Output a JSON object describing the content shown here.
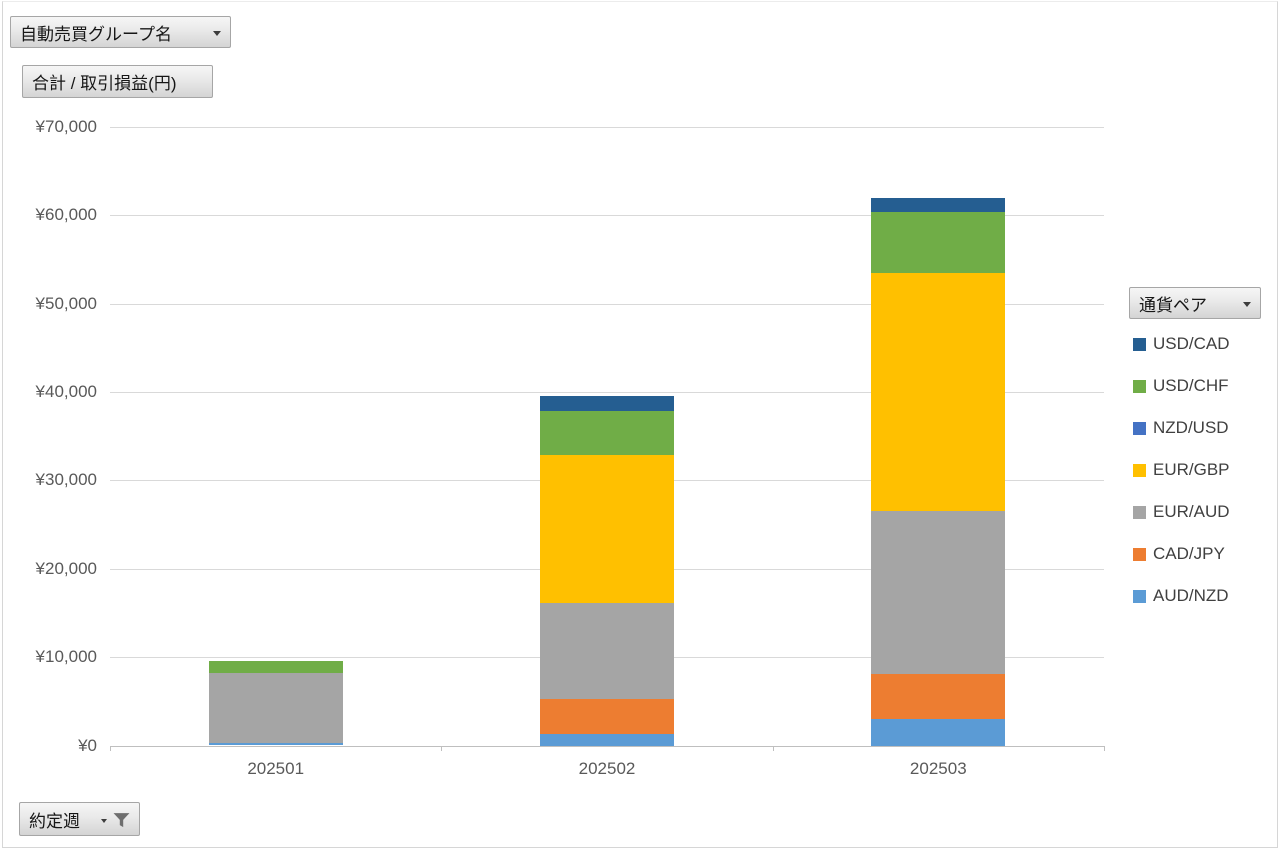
{
  "field_buttons": {
    "group_name_label": "自動売買グループ名",
    "value_label": "合計 / 取引損益(円)",
    "legend_label": "通貨ペア",
    "axis_label": "約定週"
  },
  "chart_data": {
    "type": "bar",
    "stacked": true,
    "categories": [
      "202501",
      "202502",
      "202503"
    ],
    "series": [
      {
        "name": "AUD/NZD",
        "color": "#5B9BD5",
        "values": [
          300,
          1300,
          3000
        ]
      },
      {
        "name": "CAD/JPY",
        "color": "#ED7D31",
        "values": [
          0,
          4000,
          5100
        ]
      },
      {
        "name": "EUR/AUD",
        "color": "#A5A5A5",
        "values": [
          7900,
          10800,
          18400
        ]
      },
      {
        "name": "EUR/GBP",
        "color": "#FFC000",
        "values": [
          0,
          16800,
          27000
        ]
      },
      {
        "name": "NZD/USD",
        "color": "#4472C4",
        "values": [
          0,
          0,
          0
        ]
      },
      {
        "name": "USD/CHF",
        "color": "#70AD47",
        "values": [
          1400,
          5000,
          6900
        ]
      },
      {
        "name": "USD/CAD",
        "color": "#255E91",
        "values": [
          0,
          1700,
          1600
        ]
      }
    ],
    "stack_order": "bottom-to-top",
    "legend_position": "right",
    "legend_order_top_to_bottom": [
      "USD/CAD",
      "USD/CHF",
      "NZD/USD",
      "EUR/GBP",
      "EUR/AUD",
      "CAD/JPY",
      "AUD/NZD"
    ],
    "ylim": [
      0,
      70000
    ],
    "ytick_step": 10000,
    "ytick_labels": [
      "¥0",
      "¥10,000",
      "¥20,000",
      "¥30,000",
      "¥40,000",
      "¥50,000",
      "¥60,000",
      "¥70,000"
    ],
    "grid": true
  }
}
